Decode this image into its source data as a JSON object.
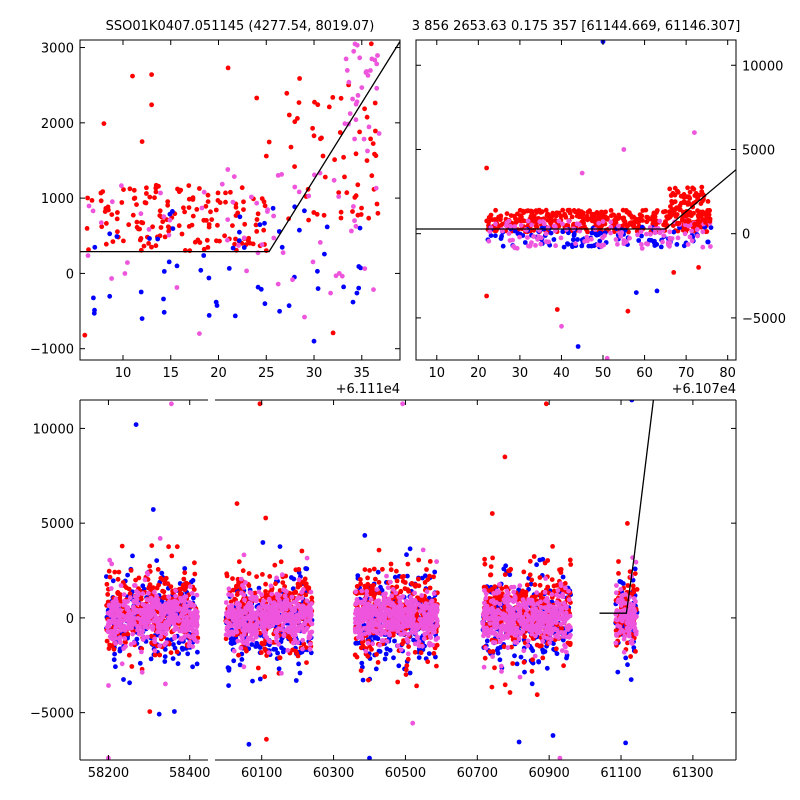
{
  "chart_data": [
    {
      "id": "top-left",
      "type": "scatter",
      "title": "SSO01K0407.051145 (4277.54, 8019.07)",
      "offset_label": "+6.111e4",
      "xlim": [
        5.5,
        39.0
      ],
      "ylim": [
        -1150,
        3100
      ],
      "xticks": [
        10,
        15,
        20,
        25,
        30,
        35
      ],
      "yticks": [
        -1000,
        0,
        1000,
        2000,
        3000
      ],
      "ytick_side": "left",
      "colors": {
        "red": "#ff0000",
        "blue": "#0000ff",
        "pink": "#ee55dd"
      },
      "fit_line": {
        "x": [
          5.5,
          25.3,
          39.0
        ],
        "y": [
          290,
          290,
          3080
        ]
      },
      "bands": [
        {
          "x0": 6,
          "x1": 25,
          "lo": 300,
          "hi": 1200,
          "n": 150,
          "color": "red"
        },
        {
          "x0": 25,
          "x1": 37,
          "lo": 700,
          "hi": 2600,
          "n": 60,
          "color": "red"
        },
        {
          "x0": 6,
          "x1": 35,
          "lo": -600,
          "hi": 900,
          "n": 55,
          "color": "blue"
        },
        {
          "x0": 6,
          "x1": 37,
          "lo": -300,
          "hi": 1400,
          "n": 60,
          "color": "pink"
        },
        {
          "x0": 33,
          "x1": 37,
          "lo": 1600,
          "hi": 3050,
          "n": 30,
          "color": "pink"
        }
      ],
      "outliers": [
        [
          11,
          2620,
          "red"
        ],
        [
          13,
          2640,
          "red"
        ],
        [
          21,
          2730,
          "red"
        ],
        [
          13,
          2240,
          "red"
        ],
        [
          24,
          2330,
          "red"
        ],
        [
          8,
          1990,
          "red"
        ],
        [
          12,
          1750,
          "red"
        ],
        [
          29,
          -580,
          "pink"
        ],
        [
          30,
          -900,
          "blue"
        ],
        [
          32,
          -790,
          "red"
        ],
        [
          6,
          -820,
          "red"
        ],
        [
          7,
          -530,
          "blue"
        ],
        [
          12,
          -600,
          "blue"
        ],
        [
          18,
          -800,
          "pink"
        ],
        [
          36,
          3050,
          "red"
        ]
      ]
    },
    {
      "id": "top-right",
      "type": "scatter",
      "title": "3 856 2653.63 0.175 357 [61144.669, 61146.307]",
      "offset_label": "+6.107e4",
      "xlim": [
        5.0,
        82.0
      ],
      "ylim": [
        -7500,
        11500
      ],
      "xticks": [
        10,
        20,
        30,
        40,
        50,
        60,
        70,
        80
      ],
      "yticks": [
        -5000,
        0,
        5000,
        10000
      ],
      "ytick_side": "right",
      "colors": {
        "red": "#ff0000",
        "blue": "#0000ff",
        "pink": "#ee55dd"
      },
      "fit_line": {
        "x": [
          5.0,
          65.0,
          82.0
        ],
        "y": [
          280,
          280,
          3800
        ]
      },
      "bands": [
        {
          "x0": 22,
          "x1": 76,
          "lo": 100,
          "hi": 1400,
          "n": 420,
          "color": "red"
        },
        {
          "x0": 22,
          "x1": 76,
          "lo": -800,
          "hi": 400,
          "n": 110,
          "color": "blue"
        },
        {
          "x0": 22,
          "x1": 76,
          "lo": -900,
          "hi": 800,
          "n": 130,
          "color": "pink"
        },
        {
          "x0": 66,
          "x1": 76,
          "lo": 500,
          "hi": 2800,
          "n": 80,
          "color": "red"
        }
      ],
      "outliers": [
        [
          22,
          -3700,
          "red"
        ],
        [
          22,
          3900,
          "red"
        ],
        [
          55,
          5000,
          "pink"
        ],
        [
          45,
          3600,
          "pink"
        ],
        [
          72,
          6000,
          "pink"
        ],
        [
          39,
          -4500,
          "red"
        ],
        [
          40,
          -5500,
          "pink"
        ],
        [
          44,
          -6700,
          "blue"
        ],
        [
          50,
          11400,
          "blue"
        ],
        [
          51,
          -7400,
          "pink"
        ],
        [
          56,
          -4600,
          "red"
        ],
        [
          58,
          -3500,
          "blue"
        ],
        [
          63,
          -3400,
          "blue"
        ],
        [
          67,
          -2300,
          "red"
        ],
        [
          73,
          -2000,
          "red"
        ],
        [
          74,
          -800,
          "pink"
        ]
      ]
    },
    {
      "id": "bottom",
      "type": "scatter",
      "title": "",
      "offset_label": "",
      "xlim": [
        58130,
        61420
      ],
      "ylim": [
        -7500,
        11500
      ],
      "xticks": [
        58200,
        58400,
        60100,
        60300,
        60500,
        60700,
        60900,
        61100,
        61300
      ],
      "yticks": [
        -5000,
        0,
        5000,
        10000
      ],
      "ytick_side": "left",
      "colors": {
        "red": "#ff0000",
        "blue": "#0000ff",
        "pink": "#ee55dd"
      },
      "fit_line": {
        "x": [
          61040,
          61115,
          61135,
          61190
        ],
        "y": [
          250,
          250,
          3000,
          11500
        ]
      },
      "clusters": [
        {
          "x0": 58195,
          "x1": 58420,
          "n": 1000
        },
        {
          "x0": 60000,
          "x1": 60240,
          "n": 1000
        },
        {
          "x0": 60360,
          "x1": 60590,
          "n": 1000
        },
        {
          "x0": 60715,
          "x1": 60960,
          "n": 1000
        },
        {
          "x0": 61085,
          "x1": 61145,
          "n": 250
        }
      ],
      "outliers": [
        [
          58355,
          11300,
          "pink"
        ],
        [
          58268,
          10200,
          "blue"
        ],
        [
          60095,
          11300,
          "red"
        ],
        [
          60492,
          11300,
          "pink"
        ],
        [
          60892,
          11300,
          "red"
        ],
        [
          61130,
          11500,
          "blue"
        ],
        [
          58200,
          -7400,
          "pink"
        ],
        [
          60400,
          -7400,
          "blue"
        ],
        [
          60930,
          -7400,
          "pink"
        ]
      ]
    }
  ]
}
